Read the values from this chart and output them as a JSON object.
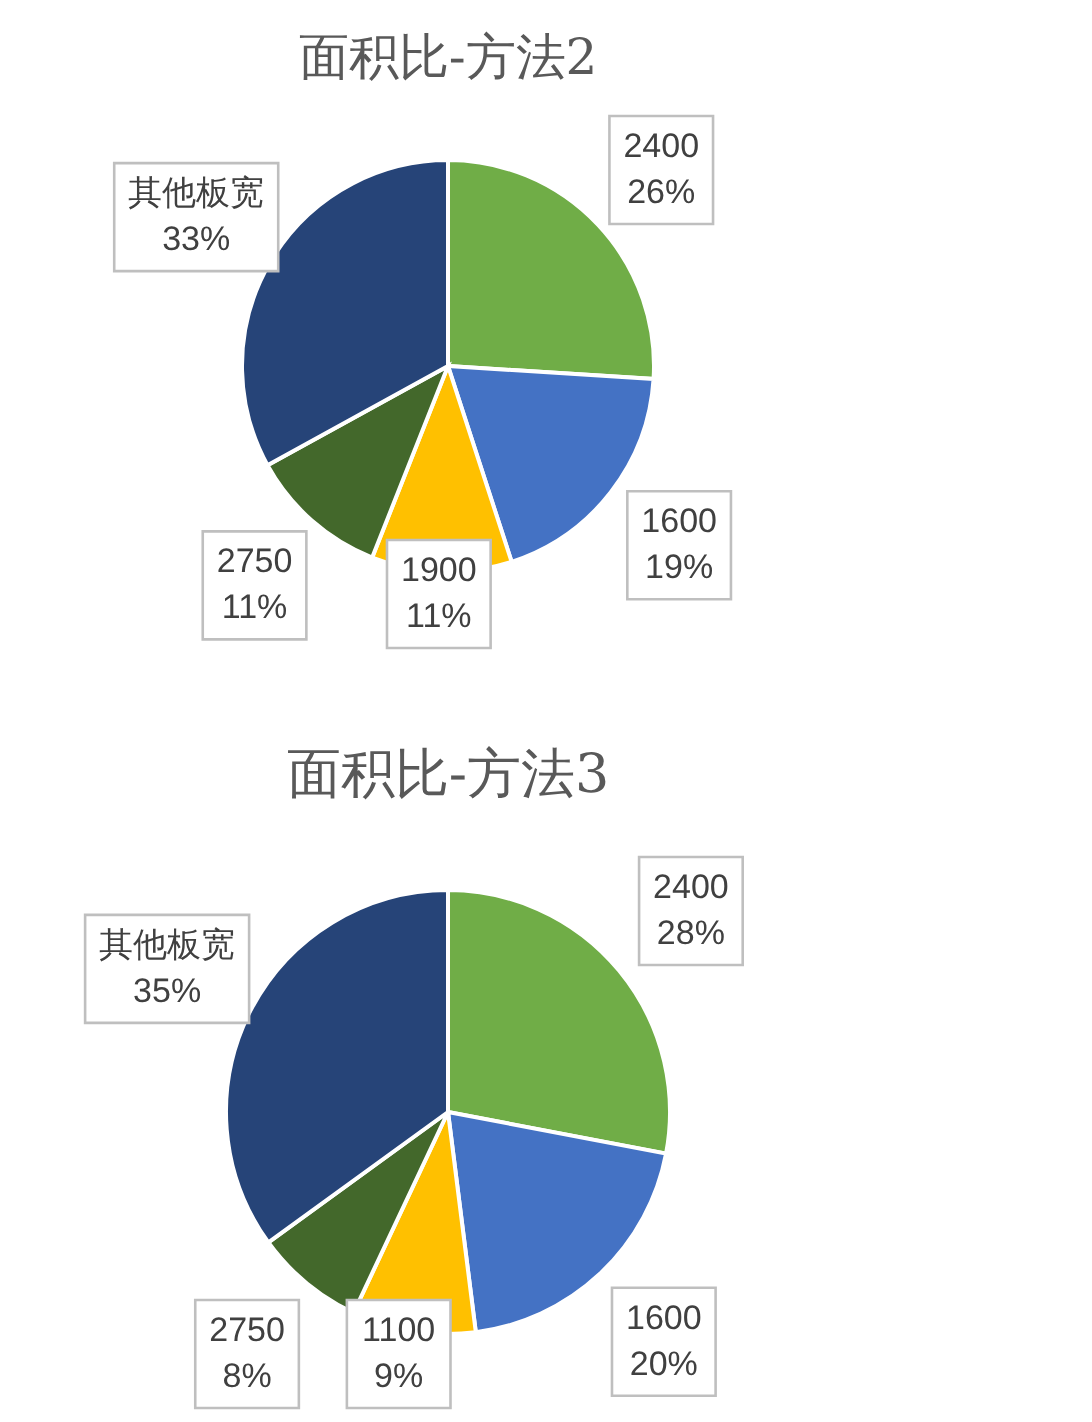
{
  "chart_data": [
    {
      "type": "pie",
      "title": "面积比-方法2",
      "categories": [
        "2400",
        "1600",
        "1900",
        "2750",
        "其他板宽"
      ],
      "values": [
        26,
        19,
        11,
        11,
        33
      ],
      "value_labels": [
        "26%",
        "19%",
        "11%",
        "11%",
        "33%"
      ],
      "colors": [
        "#70ad47",
        "#4472c4",
        "#ffc000",
        "#43682b",
        "#264478"
      ]
    },
    {
      "type": "pie",
      "title": "面积比-方法3",
      "categories": [
        "2400",
        "1600",
        "1100",
        "2750",
        "其他板宽"
      ],
      "values": [
        28,
        20,
        9,
        8,
        35
      ],
      "value_labels": [
        "28%",
        "20%",
        "9%",
        "8%",
        "35%"
      ],
      "colors": [
        "#70ad47",
        "#4472c4",
        "#ffc000",
        "#43682b",
        "#264478"
      ]
    }
  ]
}
